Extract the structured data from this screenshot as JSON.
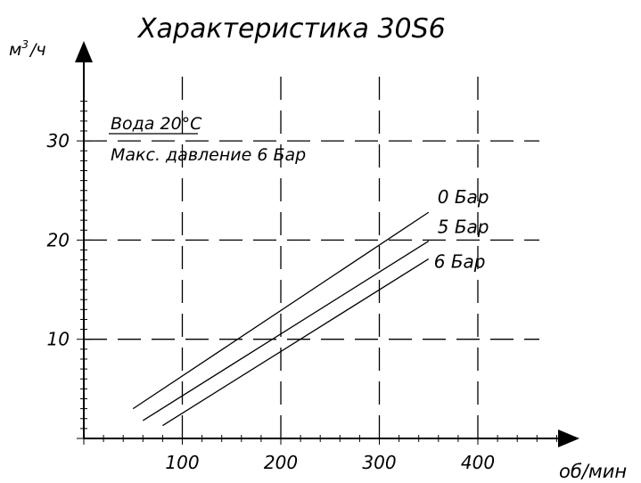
{
  "chart_data": {
    "type": "line",
    "title": "Характеристика 30S6",
    "xlabel": "об/мин",
    "ylabel_base": "м",
    "ylabel_sup": "3",
    "ylabel_rest": "/ч",
    "xlim": [
      0,
      450
    ],
    "ylim": [
      0,
      35
    ],
    "x_ticks": [
      100,
      200,
      300,
      400
    ],
    "x_tick_labels": [
      "100",
      "200",
      "300",
      "400"
    ],
    "y_ticks": [
      10,
      20,
      30
    ],
    "y_tick_labels": [
      "10",
      "20",
      "30"
    ],
    "grid": true,
    "grid_style": "dashed",
    "annotations": [
      "Вода 20°C",
      "Макс. давление 6 Бар"
    ],
    "series": [
      {
        "name": "0 Бар",
        "x": [
          50,
          350
        ],
        "y": [
          3.0,
          22.8
        ]
      },
      {
        "name": "5 Бар",
        "x": [
          60,
          350
        ],
        "y": [
          1.8,
          19.9
        ]
      },
      {
        "name": "6 Бар",
        "x": [
          80,
          350
        ],
        "y": [
          1.3,
          18.1
        ]
      }
    ]
  }
}
